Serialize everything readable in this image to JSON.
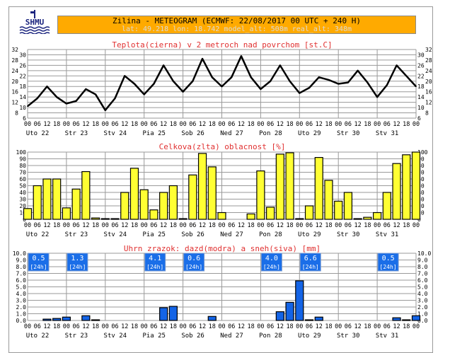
{
  "header": {
    "title": "Zilina - METEOGRAM (ECMWF: 22/08/2017 00 UTC + 240 H)",
    "subtitle": "lat: 49.218  lon: 18.742  model_alt: 508m  real_alt: 348m",
    "logo_text": "SHMU"
  },
  "colors": {
    "header_bg": "#ffaa00",
    "title_red": "#e03030",
    "cloud_fill": "#ffff33",
    "precip_fill": "#1464e6",
    "grid": "#9a9a9a"
  },
  "chart_data": [
    {
      "type": "line",
      "title": "Teplota(cierna) v 2 metroch nad povrchom [st.C]",
      "hour_ticks": [
        "00",
        "06",
        "12",
        "18",
        "00",
        "06",
        "12",
        "18",
        "00",
        "06",
        "12",
        "18",
        "00",
        "06",
        "12",
        "18",
        "00",
        "06",
        "12",
        "18",
        "00",
        "06",
        "12",
        "18",
        "00",
        "06",
        "12",
        "18",
        "00",
        "06",
        "12",
        "18",
        "00",
        "06",
        "12",
        "18",
        "00",
        "06",
        "12",
        "18",
        "00"
      ],
      "day_labels": [
        "Uto 22",
        "Str 23",
        "Stv 24",
        "Pia 25",
        "Sob 26",
        "Ned 27",
        "Pon 28",
        "Uto 29",
        "Str 30",
        "Stv 31"
      ],
      "ylim": [
        6,
        32
      ],
      "yticks": [
        "6",
        "8",
        "10",
        "12",
        "14",
        "16",
        "18",
        "20",
        "22",
        "24",
        "26",
        "28",
        "30",
        "32"
      ],
      "values": [
        10.5,
        13.5,
        18,
        14,
        11.5,
        12.5,
        17,
        15,
        9,
        13.5,
        22,
        19,
        15,
        19,
        26,
        20,
        16,
        20,
        28.5,
        21.5,
        18,
        21.5,
        29.5,
        21.5,
        17,
        20,
        26,
        20,
        15.5,
        17.5,
        21.5,
        20.5,
        19,
        19.5,
        24,
        19.5,
        14,
        18.5,
        26,
        22,
        18
      ]
    },
    {
      "type": "bar",
      "title": "Celkova(zlta) oblacnost [%]",
      "ylim": [
        0,
        100
      ],
      "yticks": [
        "0",
        "10",
        "20",
        "30",
        "40",
        "50",
        "60",
        "70",
        "80",
        "90",
        "100"
      ],
      "values": [
        16,
        50,
        60,
        60,
        17,
        45,
        71,
        2,
        1,
        1,
        40,
        76,
        44,
        14,
        40,
        50,
        1,
        66,
        98,
        78,
        10,
        0,
        0,
        8,
        72,
        18,
        97,
        99,
        1,
        20,
        92,
        58,
        27,
        40,
        1,
        3,
        10,
        40,
        83,
        96,
        100
      ]
    },
    {
      "type": "bar",
      "title": "Uhrn zrazok: dazd(modra) a sneh(siva) [mm]",
      "ylim": [
        0,
        10
      ],
      "yticks": [
        "0.0",
        "1.0",
        "2.0",
        "3.0",
        "4.0",
        "5.0",
        "6.0",
        "7.0",
        "8.0",
        "9.0",
        "10.0"
      ],
      "values": [
        0,
        0,
        0.2,
        0.3,
        0.5,
        0,
        0.7,
        0.1,
        0,
        0,
        0,
        0,
        0,
        0,
        1.9,
        2.1,
        0,
        0,
        0,
        0.6,
        0,
        0,
        0,
        0,
        0,
        0,
        1.3,
        2.7,
        5.9,
        0.1,
        0.5,
        0,
        0,
        0,
        0,
        0,
        0,
        0,
        0.4,
        0.1,
        0.7
      ],
      "daily_totals": [
        {
          "day_index": 0,
          "value": "0.5",
          "period": "[24h]"
        },
        {
          "day_index": 1,
          "value": "1.3",
          "period": "[24h]"
        },
        {
          "day_index": 3,
          "value": "4.1",
          "period": "[24h]"
        },
        {
          "day_index": 4,
          "value": "0.6",
          "period": "[24h]"
        },
        {
          "day_index": 6,
          "value": "4.0",
          "period": "[24h]"
        },
        {
          "day_index": 7,
          "value": "6.6",
          "period": "[24h]"
        },
        {
          "day_index": 9,
          "value": "0.5",
          "period": "[24h]"
        }
      ]
    }
  ]
}
